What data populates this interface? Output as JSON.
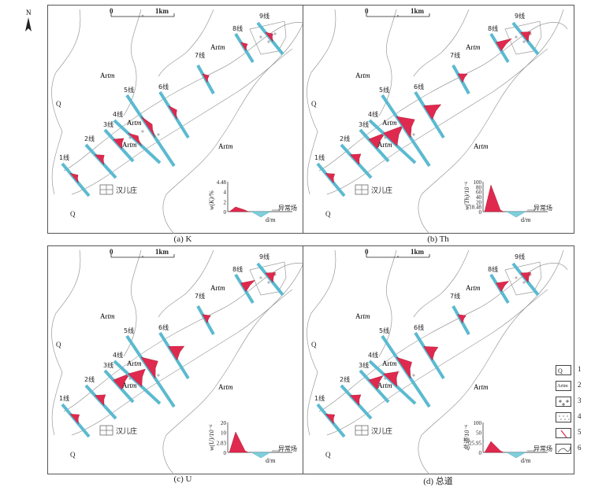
{
  "north_label": "N",
  "scale": {
    "zero": "0",
    "one": "1km"
  },
  "labels": {
    "artm": "Artm",
    "q": "Q",
    "village": "汉儿庄"
  },
  "lines": [
    "1线",
    "2线",
    "3线",
    "4线",
    "5线",
    "6线",
    "7线",
    "8线",
    "9线"
  ],
  "panels": [
    {
      "id": "a",
      "caption": "(a) K",
      "unit_label": "w(K)/%",
      "axis_values": [
        "4.48",
        "4",
        "2",
        "0"
      ],
      "anomaly_label": "异常场",
      "distance_label": "d/m"
    },
    {
      "id": "b",
      "caption": "(b) Th",
      "unit_label": "w(Th)/10⁻⁶",
      "axis_values": [
        "100",
        "80",
        "60",
        "40",
        "20",
        "18.48",
        "0"
      ],
      "anomaly_label": "异常场",
      "distance_label": "d/m"
    },
    {
      "id": "c",
      "caption": "(c) U",
      "unit_label": "w(U)/10⁻⁶",
      "axis_values": [
        "20",
        "10",
        "2.83",
        "0"
      ],
      "anomaly_label": "异常场",
      "distance_label": "d/m"
    },
    {
      "id": "d",
      "caption": "(d) 总道",
      "unit_label": "总道/10⁻⁶",
      "axis_values": [
        "100",
        "50",
        "25.95",
        "0"
      ],
      "anomaly_label": "异常场",
      "distance_label": "d/m"
    }
  ],
  "legend": [
    {
      "num": "1",
      "text": "Q"
    },
    {
      "num": "2",
      "text": "Artm"
    },
    {
      "num": "3",
      "text": ""
    },
    {
      "num": "4",
      "text": ""
    },
    {
      "num": "5",
      "text": ""
    },
    {
      "num": "6",
      "text": ""
    }
  ],
  "colors": {
    "anomaly": "#e0294f",
    "negative": "#7ecfdc",
    "outline": "#9a9a9a",
    "line": "#5bbad0"
  }
}
